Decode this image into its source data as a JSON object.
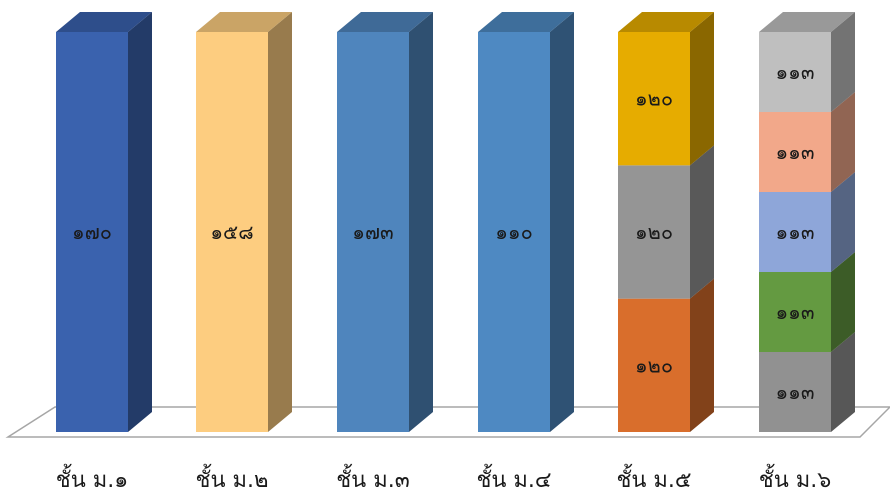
{
  "chart_data": {
    "type": "bar",
    "stacked": true,
    "three_d": true,
    "title": "",
    "xlabel": "",
    "ylabel": "",
    "grid": false,
    "legend": "none",
    "categories": [
      "ชั้น ม.๑",
      "ชั้น ม.๒",
      "ชั้น ม.๓",
      "ชั้น ม.๔",
      "ชั้น ม.๕",
      "ชั้น ม.๖"
    ],
    "bars": [
      {
        "segments": [
          {
            "value": 170,
            "label": "๑๗๐",
            "color": "#3a62ae"
          }
        ]
      },
      {
        "segments": [
          {
            "value": 158,
            "label": "๑๕๘",
            "color": "#fdcd80"
          }
        ]
      },
      {
        "segments": [
          {
            "value": 173,
            "label": "๑๗๓",
            "color": "#4f85bd"
          }
        ]
      },
      {
        "segments": [
          {
            "value": 110,
            "label": "๑๑๐",
            "color": "#4e89c2"
          }
        ]
      },
      {
        "segments": [
          {
            "value": 120,
            "label": "๑๒๐",
            "color": "#d96e2c"
          },
          {
            "value": 120,
            "label": "๑๒๐",
            "color": "#959595"
          },
          {
            "value": 120,
            "label": "๑๒๐",
            "color": "#e6ac00"
          }
        ]
      },
      {
        "segments": [
          {
            "value": 113,
            "label": "๑๑๓",
            "color": "#919191"
          },
          {
            "value": 113,
            "label": "๑๑๓",
            "color": "#649a41"
          },
          {
            "value": 113,
            "label": "๑๑๓",
            "color": "#8ea6d9"
          },
          {
            "value": 113,
            "label": "๑๑๓",
            "color": "#f2a88a"
          },
          {
            "value": 113,
            "label": "๑๑๓",
            "color": "#bfbfbf"
          }
        ]
      }
    ]
  }
}
